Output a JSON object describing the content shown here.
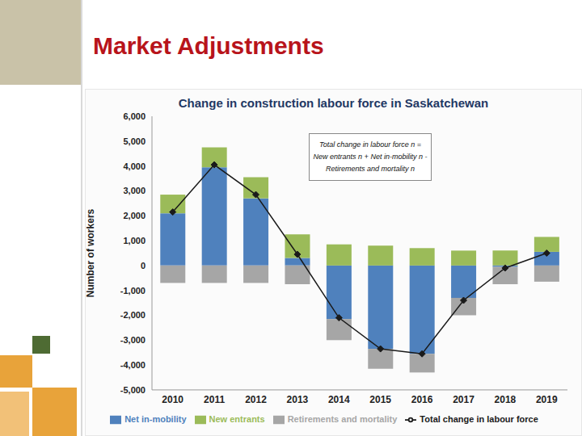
{
  "slide": {
    "title": "Market Adjustments"
  },
  "chart_data": {
    "type": "bar",
    "title": "Change in construction labour force in Saskatchewan",
    "y_label": "Number of workers",
    "annotation": "Total change  in labour force n  =  New entrants  n  +  Net in-mobility n  -  Retirements and mortality n",
    "categories": [
      "2010",
      "2011",
      "2012",
      "2013",
      "2014",
      "2015",
      "2016",
      "2017",
      "2018",
      "2019"
    ],
    "series": [
      {
        "name": "Net in-mobility",
        "type": "bar",
        "color": "#4f81bd",
        "values": [
          2100,
          3950,
          2700,
          300,
          -2150,
          -3350,
          -3550,
          -1300,
          -50,
          550
        ]
      },
      {
        "name": "New entrants",
        "type": "bar",
        "color": "#9bbb59",
        "values": [
          750,
          800,
          850,
          950,
          850,
          800,
          700,
          600,
          600,
          600
        ]
      },
      {
        "name": "Retirements and mortality",
        "type": "bar",
        "color": "#a6a6a6",
        "values": [
          -700,
          -700,
          -700,
          -750,
          -850,
          -800,
          -750,
          -700,
          -700,
          -650
        ]
      },
      {
        "name": "Total change in labour force",
        "type": "line",
        "color": "#1a1a1a",
        "marker": "diamond",
        "values": [
          2150,
          4050,
          2850,
          450,
          -2100,
          -3350,
          -3550,
          -1400,
          -100,
          500
        ]
      }
    ],
    "stacked": true,
    "ylim": [
      -5000,
      6000
    ],
    "yticks": [
      {
        "value": -5000,
        "label": "-5,000"
      },
      {
        "value": -4000,
        "label": "-4,000"
      },
      {
        "value": -3000,
        "label": "-3,000"
      },
      {
        "value": -2000,
        "label": "-2,000"
      },
      {
        "value": -1000,
        "label": "-1,000"
      },
      0,
      {
        "value": 1000,
        "label": "1,000"
      },
      {
        "value": 2000,
        "label": "2,000"
      },
      {
        "value": 3000,
        "label": "3,000"
      },
      {
        "value": 4000,
        "label": "4,000"
      },
      {
        "value": 5000,
        "label": "5,000"
      },
      {
        "value": 6000,
        "label": "6,000"
      }
    ],
    "grid": false,
    "legend": "bottom"
  }
}
